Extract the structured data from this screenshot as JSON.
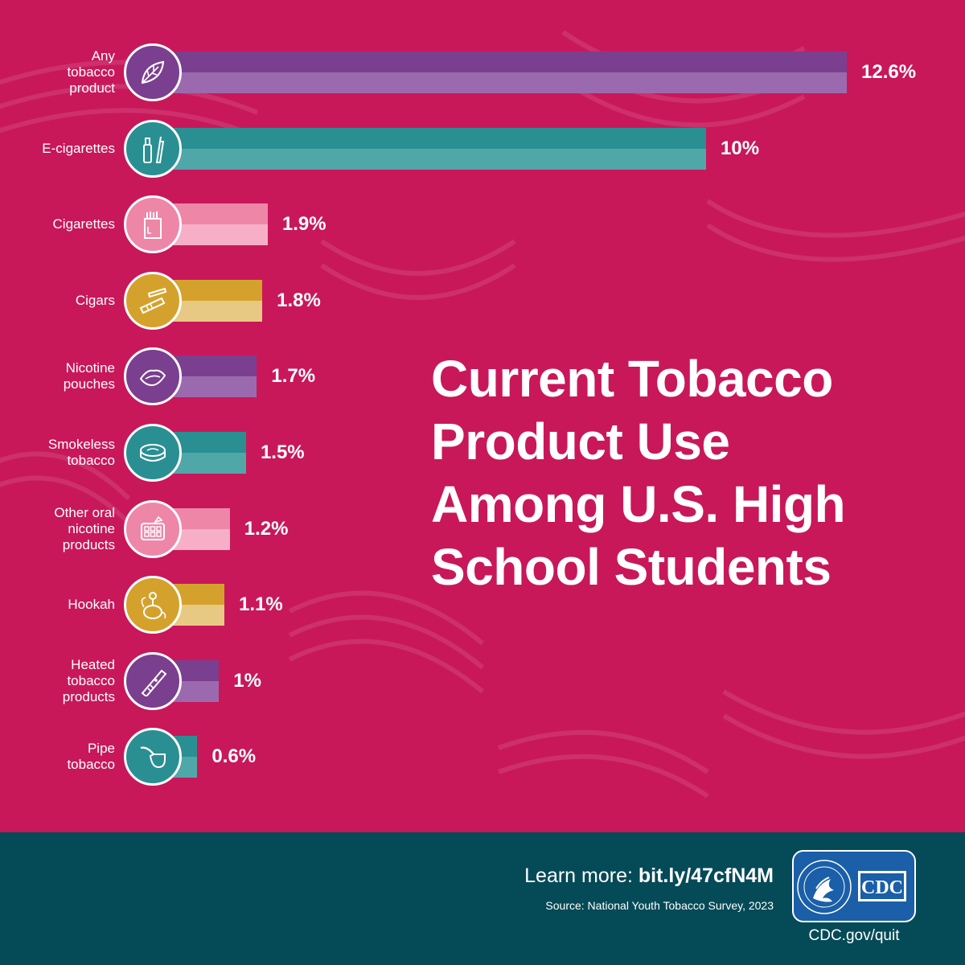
{
  "title": "Current Tobacco Product Use Among U.S. High School Students",
  "title_lines": [
    "Current Tobacco",
    "Product Use",
    "Among U.S. High",
    "School Students"
  ],
  "chart_data": {
    "type": "bar",
    "orientation": "horizontal",
    "title": "Current Tobacco Product Use Among U.S. High School Students",
    "categories": [
      "Any tobacco product",
      "E-cigarettes",
      "Cigarettes",
      "Cigars",
      "Nicotine pouches",
      "Smokeless tobacco",
      "Other oral nicotine products",
      "Hookah",
      "Heated tobacco products",
      "Pipe tobacco"
    ],
    "category_labels_wrapped": [
      "Any\ntobacco\nproduct",
      "E-cigarettes",
      "Cigarettes",
      "Cigars",
      "Nicotine\npouches",
      "Smokeless\ntobacco",
      "Other oral\nnicotine\nproducts",
      "Hookah",
      "Heated\ntobacco\nproducts",
      "Pipe\ntobacco"
    ],
    "values": [
      12.6,
      10,
      1.9,
      1.8,
      1.7,
      1.5,
      1.2,
      1.1,
      1,
      0.6
    ],
    "value_labels": [
      "12.6%",
      "10%",
      "1.9%",
      "1.8%",
      "1.7%",
      "1.5%",
      "1.2%",
      "1.1%",
      "1%",
      "0.6%"
    ],
    "icons": [
      "tobacco-leaf-icon",
      "e-cigarette-icon",
      "cigarette-pack-icon",
      "cigar-icon",
      "nicotine-pouch-icon",
      "smokeless-tin-icon",
      "nicotine-gum-icon",
      "hookah-icon",
      "heated-tobacco-device-icon",
      "pipe-icon"
    ],
    "colors": {
      "purple": {
        "dark": "#7b3f8f",
        "light": "#9b6aae"
      },
      "teal": {
        "dark": "#2a8f92",
        "light": "#4fa7a8"
      },
      "pink": {
        "dark": "#ee86a8",
        "light": "#f6afc6"
      },
      "gold": {
        "dark": "#d4a22c",
        "light": "#e8c983"
      }
    },
    "color_sequence": [
      "purple",
      "teal",
      "pink",
      "gold",
      "purple",
      "teal",
      "pink",
      "gold",
      "purple",
      "teal"
    ],
    "xlim": [
      0,
      12.6
    ],
    "legend": "none"
  },
  "footer": {
    "learn_more_prefix": "Learn more: ",
    "learn_more_link": "bit.ly/47cfN4M",
    "source": "Source: National Youth Tobacco Survey, 2023",
    "logo_text": "CDC",
    "logo_seal_text": "DEPARTMENT OF HEALTH & HUMAN SERVICES USA",
    "site": "CDC.gov/quit"
  },
  "colors": {
    "background": "#c8185a",
    "footer": "#054a57",
    "logo": "#1a5fa8",
    "text": "#ffffff"
  }
}
